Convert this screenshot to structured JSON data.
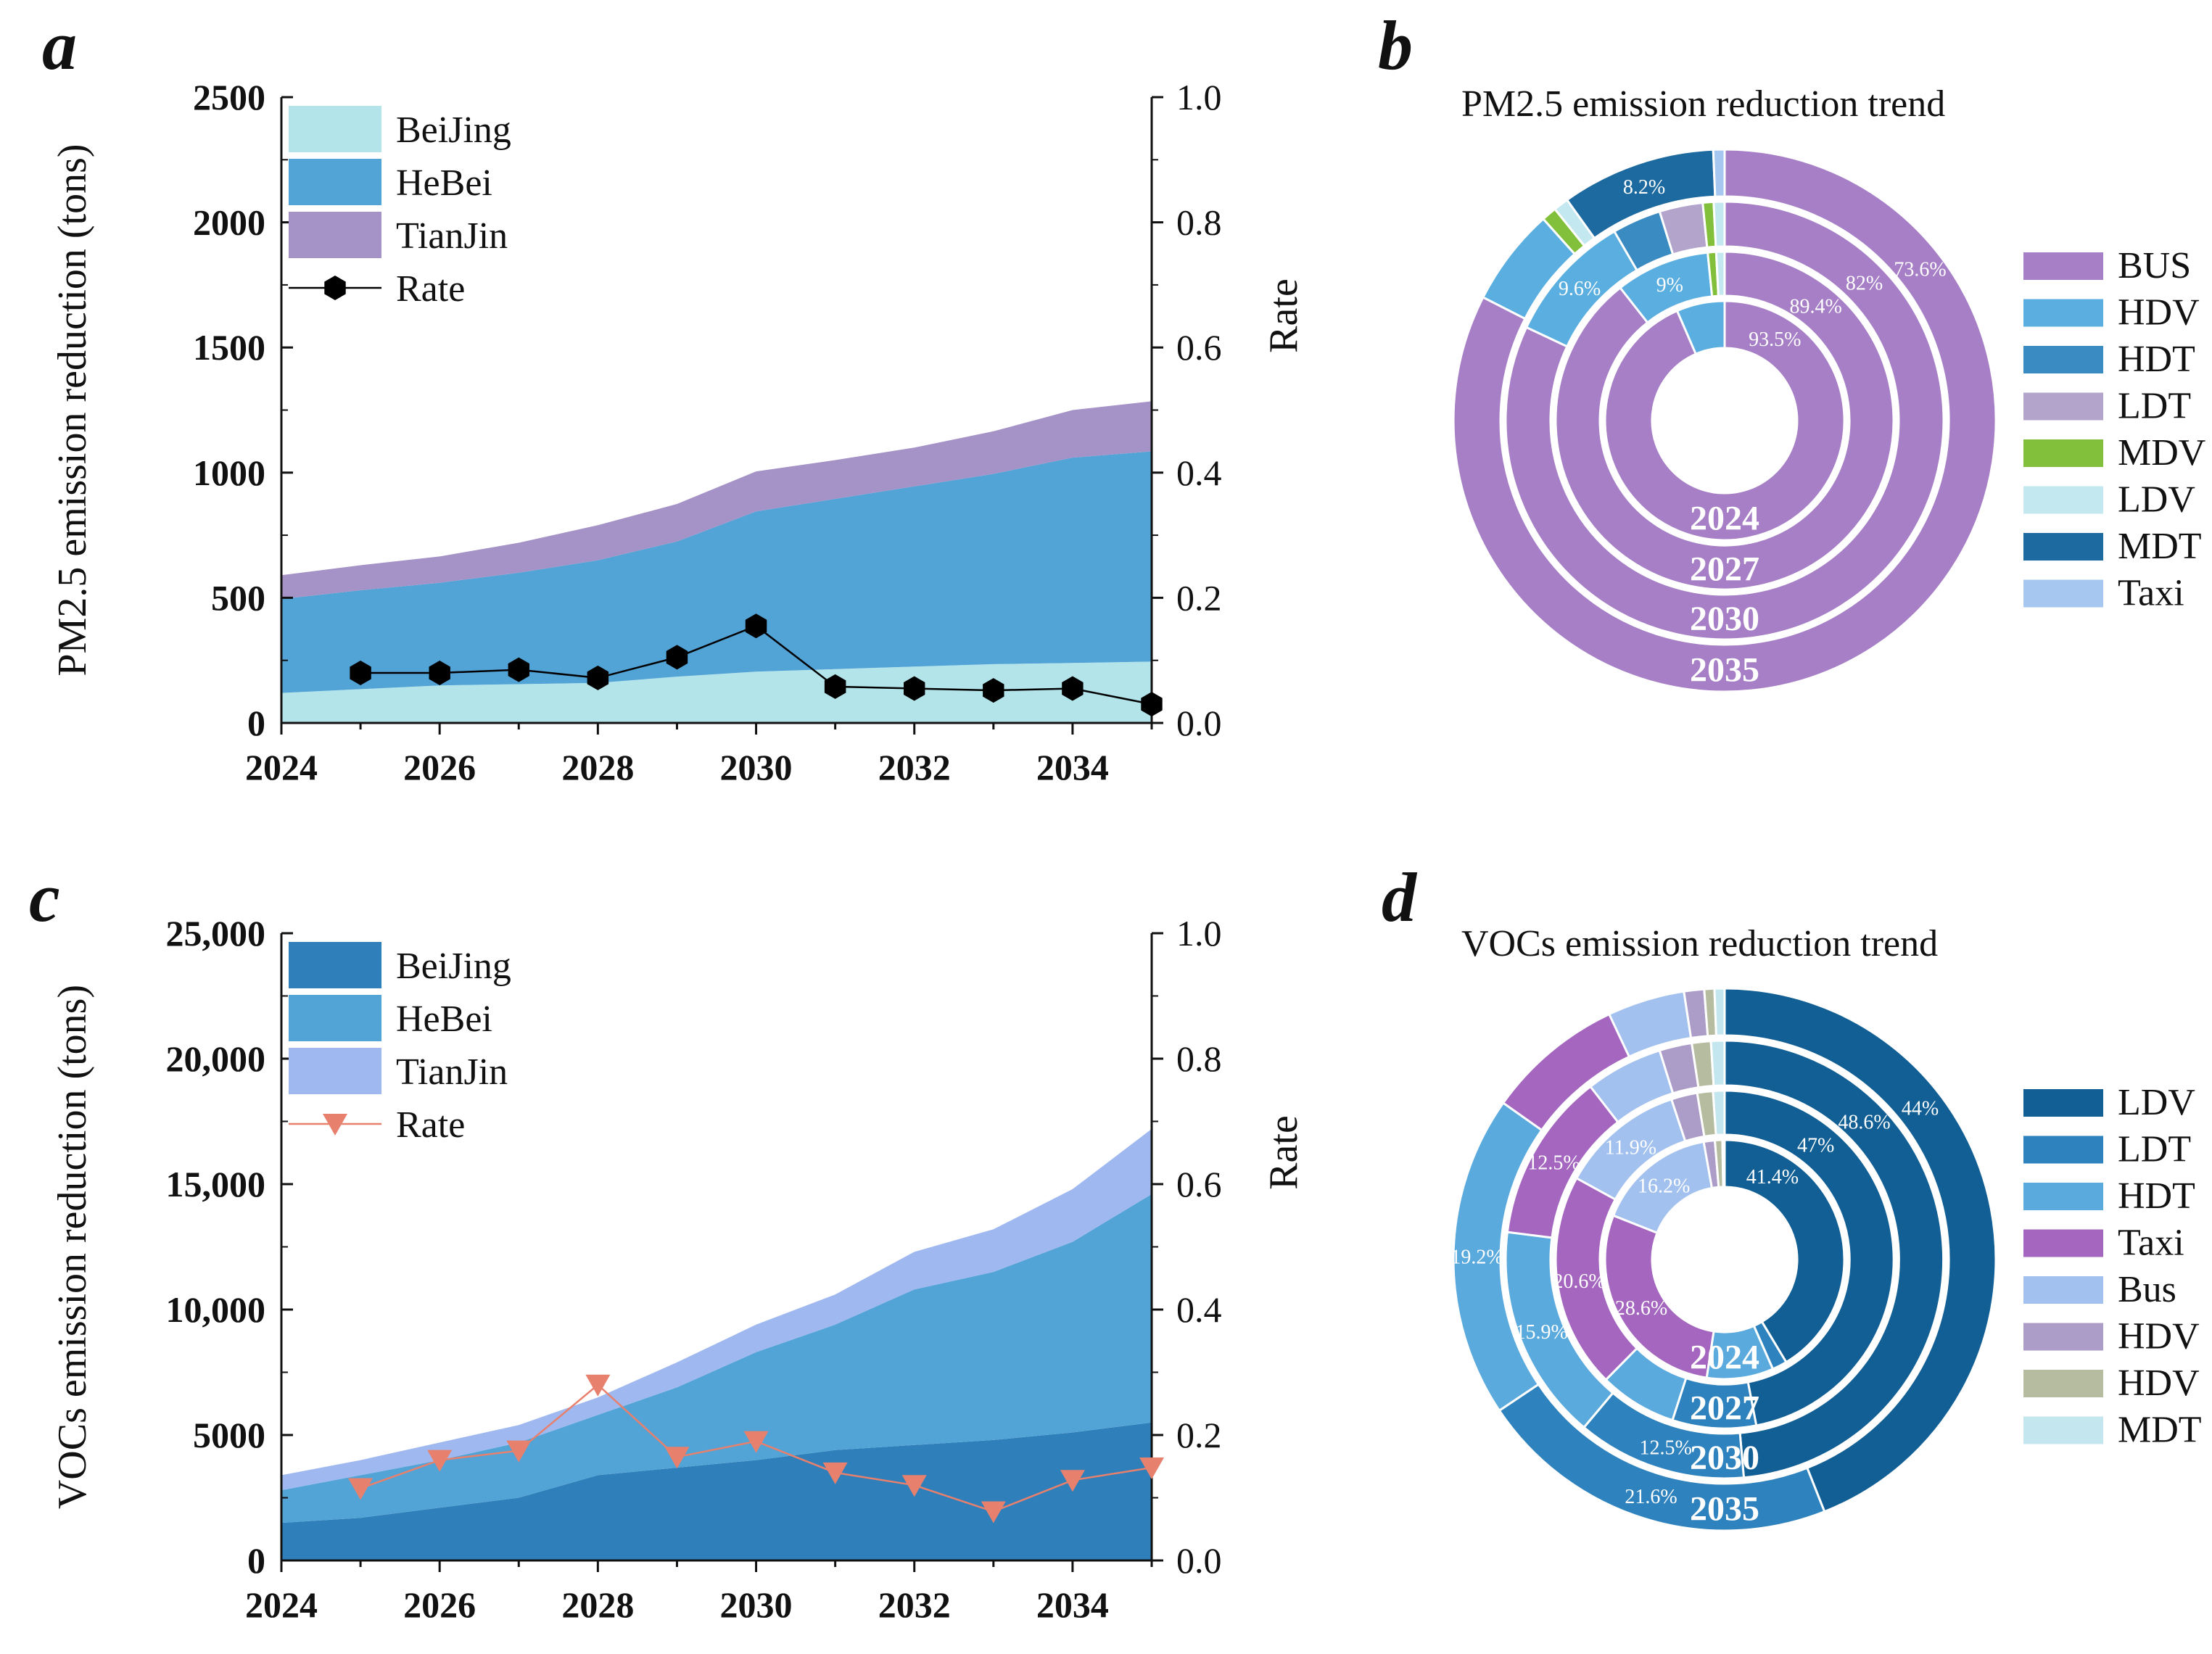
{
  "chart_data": [
    {
      "panel": "a",
      "type": "area",
      "ylabel": "PM2.5 emission reduction (tons)",
      "y2label": "Rate",
      "x": [
        2024,
        2025,
        2026,
        2027,
        2028,
        2029,
        2030,
        2031,
        2032,
        2033,
        2034,
        2035
      ],
      "xticks": [
        "2024",
        "2026",
        "2028",
        "2030",
        "2032",
        "2034"
      ],
      "yticks": [
        "0",
        "500",
        "1000",
        "1500",
        "2000",
        "2500"
      ],
      "y2ticks": [
        "0.0",
        "0.2",
        "0.4",
        "0.6",
        "0.8",
        "1.0"
      ],
      "ylim": [
        0,
        2500
      ],
      "y2lim": [
        0,
        1
      ],
      "series": [
        {
          "name": "BeiJing",
          "color": "#b3e4ea",
          "values": [
            120,
            135,
            150,
            155,
            160,
            185,
            205,
            215,
            225,
            235,
            240,
            245
          ]
        },
        {
          "name": "HeBei",
          "color": "#52a3d6",
          "values": [
            375,
            395,
            410,
            445,
            490,
            540,
            640,
            680,
            720,
            760,
            820,
            840
          ]
        },
        {
          "name": "TianJin",
          "color": "#a592c6",
          "values": [
            95,
            100,
            105,
            120,
            140,
            150,
            160,
            155,
            155,
            170,
            190,
            200
          ]
        }
      ],
      "rate": {
        "name": "Rate",
        "marker": "hexagon",
        "color": "#000000",
        "x": [
          2025,
          2026,
          2027,
          2028,
          2029,
          2030,
          2031,
          2032,
          2033,
          2034,
          2035
        ],
        "values": [
          0.08,
          0.08,
          0.085,
          0.072,
          0.105,
          0.155,
          0.058,
          0.055,
          0.052,
          0.055,
          0.03
        ]
      }
    },
    {
      "panel": "b",
      "type": "pie",
      "title": "PM2.5 emission reduction trend",
      "rings": [
        "2024",
        "2027",
        "2030",
        "2035"
      ],
      "categories": [
        "BUS",
        "HDV",
        "HDT",
        "LDT",
        "MDV",
        "LDV",
        "MDT",
        "Taxi"
      ],
      "colors": [
        "#a67fc6",
        "#5aaee0",
        "#3a8bc2",
        "#b3a4cc",
        "#82bf3a",
        "#c4e8ef",
        "#1d6aa0",
        "#a6c8f0"
      ],
      "series": [
        {
          "name": "2024",
          "values": [
            93.5,
            6.5,
            0,
            0,
            0,
            0,
            0,
            0
          ]
        },
        {
          "name": "2027",
          "values": [
            89.4,
            9,
            0,
            0,
            0.8,
            0.8,
            0,
            0
          ]
        },
        {
          "name": "2030",
          "values": [
            82,
            9.6,
            3.6,
            3.2,
            0.8,
            0.8,
            0,
            0
          ]
        },
        {
          "name": "2035",
          "values": [
            73.6,
            5.2,
            0,
            0,
            0.8,
            0.8,
            8.2,
            0.6
          ]
        }
      ],
      "labels": [
        {
          "ring": 0,
          "text": "93.5%"
        },
        {
          "ring": 1,
          "text": "89.4%"
        },
        {
          "ring": 2,
          "text": "82%"
        },
        {
          "ring": 3,
          "text": "73.6%"
        },
        {
          "ring": 1,
          "text": "9%"
        },
        {
          "ring": 2,
          "text": "9.6%"
        },
        {
          "ring": 3,
          "text": "8.2%"
        }
      ]
    },
    {
      "panel": "c",
      "type": "area",
      "ylabel": "VOCs emission reduction (tons)",
      "y2label": "Rate",
      "x": [
        2024,
        2025,
        2026,
        2027,
        2028,
        2029,
        2030,
        2031,
        2032,
        2033,
        2034,
        2035
      ],
      "xticks": [
        "2024",
        "2026",
        "2028",
        "2030",
        "2032",
        "2034"
      ],
      "yticks": [
        "0",
        "5000",
        "10,000",
        "15,000",
        "20,000",
        "25,000"
      ],
      "y2ticks": [
        "0.0",
        "0.2",
        "0.4",
        "0.6",
        "0.8",
        "1.0"
      ],
      "ylim": [
        0,
        25000
      ],
      "y2lim": [
        0,
        1
      ],
      "series": [
        {
          "name": "BeiJing",
          "color": "#2e7fba",
          "values": [
            1500,
            1700,
            2100,
            2500,
            3400,
            3700,
            4000,
            4400,
            4600,
            4800,
            5100,
            5500
          ]
        },
        {
          "name": "HeBei",
          "color": "#52a3d6",
          "values": [
            1300,
            1700,
            1900,
            2200,
            2400,
            3200,
            4300,
            5000,
            6200,
            6700,
            7600,
            9100
          ]
        },
        {
          "name": "TianJin",
          "color": "#9fb9f0",
          "values": [
            600,
            600,
            700,
            700,
            700,
            1000,
            1100,
            1200,
            1500,
            1700,
            2100,
            2600
          ]
        }
      ],
      "rate": {
        "name": "Rate",
        "marker": "triangle-down",
        "color": "#e8806e",
        "x": [
          2025,
          2026,
          2027,
          2028,
          2029,
          2030,
          2031,
          2032,
          2033,
          2034,
          2035
        ],
        "values": [
          0.115,
          0.16,
          0.175,
          0.28,
          0.165,
          0.19,
          0.14,
          0.12,
          0.078,
          0.128,
          0.148
        ]
      }
    },
    {
      "panel": "d",
      "type": "pie",
      "title": "VOCs emission reduction trend",
      "rings": [
        "2024",
        "2027",
        "2030",
        "2035"
      ],
      "categories": [
        "LDV",
        "LDT",
        "HDT",
        "Taxi",
        "Bus",
        "HDV",
        "HDV",
        "MDT"
      ],
      "colors": [
        "#115f94",
        "#2e82bd",
        "#5aaade",
        "#a466bf",
        "#a3c1ef",
        "#ab9cc8",
        "#b5bca0",
        "#c4e6ee"
      ],
      "series": [
        {
          "name": "2024",
          "values": [
            41.4,
            2,
            9,
            28.6,
            16.2,
            1.5,
            1,
            0.3
          ]
        },
        {
          "name": "2027",
          "values": [
            47,
            8,
            7.4,
            20.6,
            11.9,
            2.5,
            1.5,
            1.1
          ]
        },
        {
          "name": "2030",
          "values": [
            48.6,
            12.5,
            15.9,
            12.5,
            5.7,
            2.4,
            1.4,
            1
          ]
        },
        {
          "name": "2035",
          "values": [
            44,
            21.6,
            19.2,
            8.2,
            4.6,
            1.2,
            0.6,
            0.6
          ]
        }
      ],
      "labels": [
        {
          "ring": 0,
          "text": "41.4%"
        },
        {
          "ring": 1,
          "text": "47%"
        },
        {
          "ring": 2,
          "text": "48.6%"
        },
        {
          "ring": 3,
          "text": "44%"
        },
        {
          "ring": 0,
          "text": "28.6%"
        },
        {
          "ring": 1,
          "text": "20.6%"
        },
        {
          "ring": 2,
          "text": "12.5%"
        },
        {
          "ring": 0,
          "text": "16.2%"
        },
        {
          "ring": 1,
          "text": "11.9%"
        },
        {
          "ring": 2,
          "text": "15.9%"
        },
        {
          "ring": 3,
          "text": "19.2%"
        },
        {
          "ring": 2,
          "text": "12.5%"
        },
        {
          "ring": 3,
          "text": "21.6%"
        }
      ]
    }
  ]
}
